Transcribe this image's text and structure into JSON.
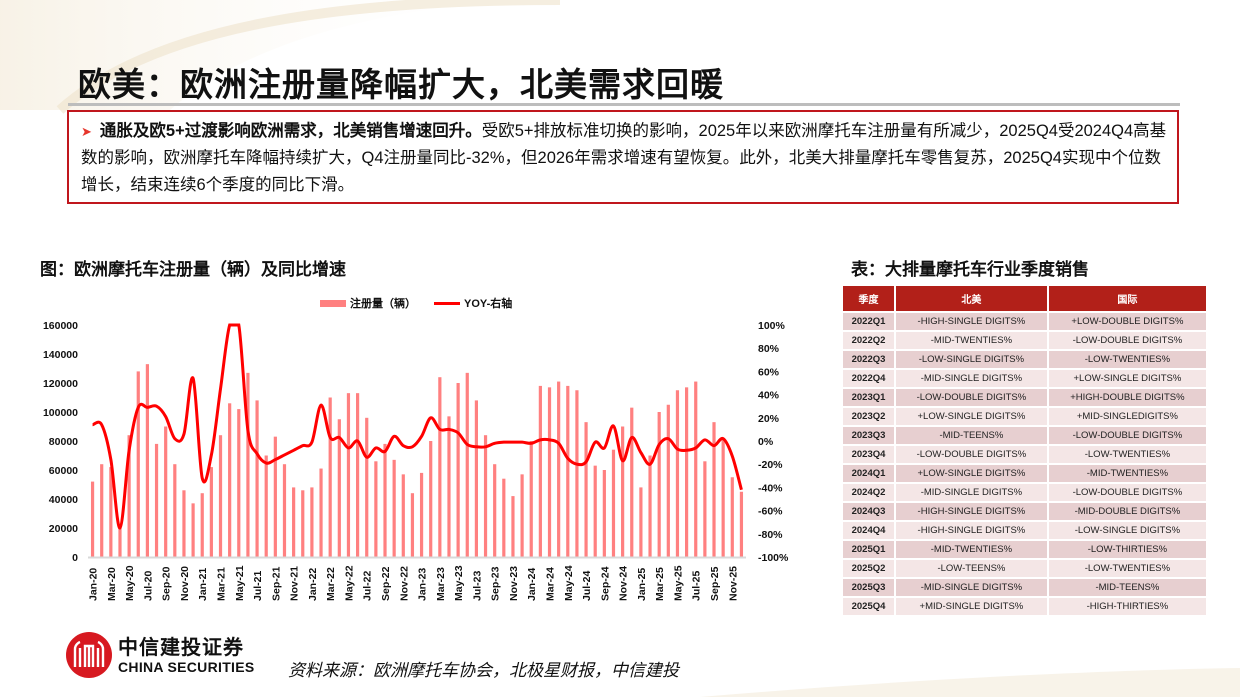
{
  "slide": {
    "title": "欧美：欧洲注册量降幅扩大，北美需求回暖",
    "summary": {
      "bullet_icon": "arrow-right-icon",
      "bold_lead": "通胀及欧5+过渡影响欧洲需求，北美销售增速回升。",
      "body": "受欧5+排放标准切换的影响，2025年以来欧洲摩托车注册量有所减少，2025Q4受2024Q4高基数的影响，欧洲摩托车降幅持续扩大，Q4注册量同比-32%，但2026年需求增速有望恢复。此外，北美大排量摩托车零售复苏，2025Q4实现中个位数增长，结束连续6个季度的同比下滑。"
    },
    "chart_title": "图：欧洲摩托车注册量（辆）及同比增速",
    "table_title": "表：大排量摩托车行业季度销售",
    "source": "资料来源：欧洲摩托车协会，北极星财报，中信建投",
    "logo": {
      "cn": "中信建投证券",
      "en": "CHINA SECURITIES"
    },
    "colors": {
      "accent": "#c0161d",
      "bar": "#ff8080",
      "line": "#ff0000",
      "table_header": "#b22019",
      "row_odd": "#e7cfd0",
      "row_even": "#f4e6e6"
    }
  },
  "chart_data": {
    "type": "bar+line",
    "title": "欧洲摩托车注册量（辆）及同比增速",
    "legend": [
      "注册量（辆）",
      "YOY-右轴"
    ],
    "legend_position": "top",
    "grid": false,
    "x_tick_labels": [
      "Jan-20",
      "Mar-20",
      "May-20",
      "Jul-20",
      "Sep-20",
      "Nov-20",
      "Jan-21",
      "Mar-21",
      "May-21",
      "Jul-21",
      "Sep-21",
      "Nov-21",
      "Jan-22",
      "Mar-22",
      "May-22",
      "Jul-22",
      "Sep-22",
      "Nov-22",
      "Jan-23",
      "Mar-23",
      "May-23",
      "Jul-23",
      "Sep-23",
      "Nov-23",
      "Jan-24",
      "Mar-24",
      "May-24",
      "Jul-24",
      "Sep-24",
      "Nov-24",
      "Jan-25",
      "Mar-25",
      "May-25",
      "Jul-25",
      "Sep-25",
      "Nov-25"
    ],
    "left_axis": {
      "label": "注册量（辆）",
      "range": [
        0,
        160000
      ],
      "ticks": [
        "0",
        "20000",
        "40000",
        "60000",
        "80000",
        "100000",
        "120000",
        "140000",
        "160000"
      ]
    },
    "right_axis": {
      "label": "YOY",
      "range": [
        -100,
        100
      ],
      "ticks": [
        "-100%",
        "-80%",
        "-60%",
        "-40%",
        "-20%",
        "0%",
        "20%",
        "40%",
        "60%",
        "80%",
        "100%"
      ]
    },
    "series": [
      {
        "name": "注册量（辆）",
        "type": "bar",
        "axis": "left",
        "values": [
          52000,
          64000,
          62000,
          20000,
          84000,
          128000,
          133000,
          78000,
          90000,
          64000,
          46000,
          37000,
          44000,
          62000,
          84000,
          106000,
          102000,
          127000,
          108000,
          70000,
          83000,
          64000,
          48000,
          46000,
          48000,
          61000,
          110000,
          95000,
          113000,
          113000,
          96000,
          66000,
          78000,
          67000,
          57000,
          44000,
          58000,
          80000,
          124000,
          97000,
          120000,
          127000,
          108000,
          84000,
          64000,
          54000,
          42000,
          57000,
          80000,
          118000,
          117000,
          121000,
          118000,
          115000,
          93000,
          63000,
          60000,
          74000,
          90000,
          103000,
          48000,
          70000,
          100000,
          105000,
          115000,
          117000,
          121000,
          66000,
          93000,
          82000,
          55000,
          45000
        ]
      },
      {
        "name": "YOY-右轴",
        "type": "line",
        "axis": "right",
        "values": [
          14,
          14,
          -16,
          -75,
          -8,
          29,
          29,
          30,
          21,
          2,
          6,
          54,
          -32,
          -12,
          45,
          100,
          100,
          9,
          -11,
          -19,
          -16,
          -12,
          -8,
          -4,
          -1,
          31,
          3,
          3,
          -6,
          0,
          -14,
          -6,
          -9,
          4,
          -4,
          -5,
          4,
          20,
          10,
          10,
          7,
          -3,
          -5,
          -5,
          -2,
          -1,
          -1,
          -1,
          -2,
          1,
          1,
          -2,
          -15,
          -20,
          -18,
          -1,
          -6,
          13,
          -17,
          3,
          -10,
          -20,
          -3,
          2,
          -7,
          -8,
          -6,
          1,
          -4,
          2,
          -13,
          -42
        ]
      }
    ]
  },
  "table": {
    "headers": [
      "季度",
      "北美",
      "国际"
    ],
    "rows": [
      [
        "2022Q1",
        "-HIGH-SINGLE DIGITS%",
        "+LOW-DOUBLE DIGITS%"
      ],
      [
        "2022Q2",
        "-MID-TWENTIES%",
        "-LOW-DOUBLE DIGITS%"
      ],
      [
        "2022Q3",
        "-LOW-SINGLE DIGITS%",
        "-LOW-TWENTIES%"
      ],
      [
        "2022Q4",
        "-MID-SINGLE DIGITS%",
        "+LOW-SINGLE DIGITS%"
      ],
      [
        "2023Q1",
        "-LOW-DOUBLE DIGITS%",
        "+HIGH-DOUBLE DIGITS%"
      ],
      [
        "2023Q2",
        "+LOW-SINGLE DIGITS%",
        "+MID-SINGLEDIGITS%"
      ],
      [
        "2023Q3",
        "-MID-TEENS%",
        "-LOW-DOUBLE DIGITS%"
      ],
      [
        "2023Q4",
        "-LOW-DOUBLE DIGITS%",
        "-LOW-TWENTIES%"
      ],
      [
        "2024Q1",
        "+LOW-SINGLE DIGITS%",
        "-MID-TWENTIES%"
      ],
      [
        "2024Q2",
        "-MID-SINGLE DIGITS%",
        "-LOW-DOUBLE DIGITS%"
      ],
      [
        "2024Q3",
        "-HIGH-SINGLE DIGITS%",
        "-MID-DOUBLE DIGITS%"
      ],
      [
        "2024Q4",
        "-HIGH-SINGLE DIGITS%",
        "-LOW-SINGLE DIGITS%"
      ],
      [
        "2025Q1",
        "-MID-TWENTIES%",
        "-LOW-THIRTIES%"
      ],
      [
        "2025Q2",
        "-LOW-TEENS%",
        "-LOW-TWENTIES%"
      ],
      [
        "2025Q3",
        "-MID-SINGLE DIGITS%",
        "-MID-TEENS%"
      ],
      [
        "2025Q4",
        "+MID-SINGLE DIGITS%",
        "-HIGH-THIRTIES%"
      ]
    ]
  }
}
